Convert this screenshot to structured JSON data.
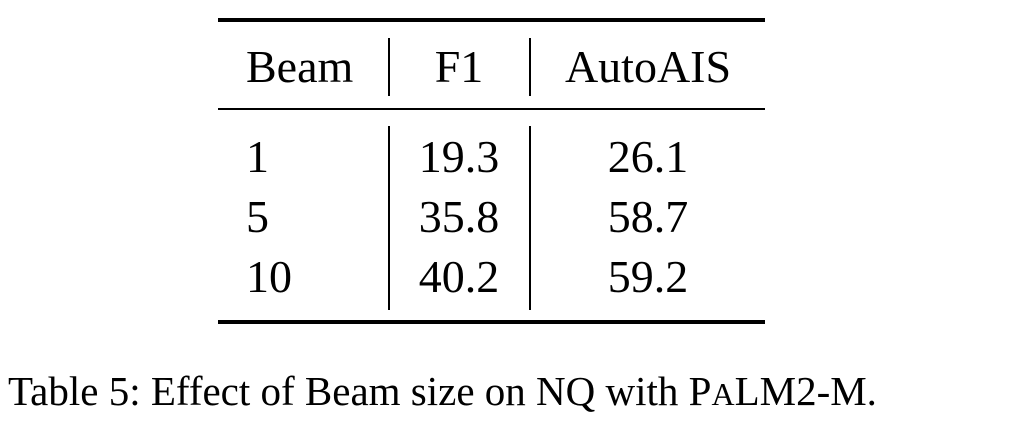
{
  "table": {
    "headers": [
      "Beam",
      "F1",
      "AutoAIS"
    ],
    "rows": [
      [
        "1",
        "19.3",
        "26.1"
      ],
      [
        "5",
        "35.8",
        "58.7"
      ],
      [
        "10",
        "40.2",
        "59.2"
      ]
    ]
  },
  "caption": {
    "prefix": "Table 5: Effect of Beam size on NQ with P",
    "smallcaps": "A",
    "suffix": "LM2-M."
  }
}
